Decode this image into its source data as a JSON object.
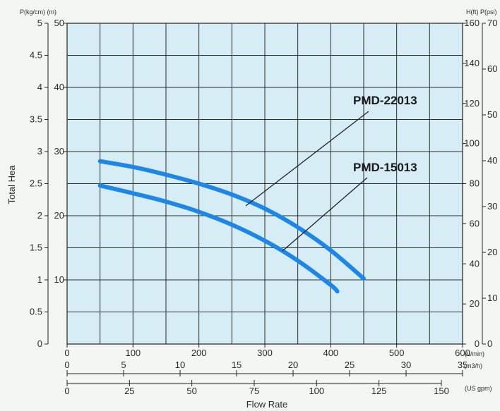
{
  "chart_data": {
    "type": "line",
    "title": "",
    "xlabel": "Flow Rate",
    "ylabel": "Total Hea",
    "x_unit": "(L/min)",
    "xlim": [
      0,
      600
    ],
    "ylim": [
      0,
      50
    ],
    "x_ticks": [
      "0",
      "100",
      "200",
      "300",
      "400",
      "500",
      "600"
    ],
    "y_ticks_left_outer": [
      "0",
      "0.5",
      "1",
      "1.5",
      "2",
      "2.5",
      "3",
      "3.5",
      "4",
      "4.5",
      "5"
    ],
    "y_ticks_left_inner": [
      "10",
      "20",
      "30",
      "40",
      "50"
    ],
    "y_unit_left": "P(kg/cm) (m)",
    "y_ticks_right_ft": [
      "0",
      "20",
      "40",
      "60",
      "80",
      "100",
      "120",
      "140",
      "160"
    ],
    "y_ticks_right_psi": [
      "0",
      "10",
      "20",
      "30",
      "40",
      "50",
      "60",
      "70"
    ],
    "y_unit_right": "H(ft) P(psi)",
    "x2_ticks": [
      "0",
      "5",
      "10",
      "15",
      "20",
      "25",
      "30",
      "35"
    ],
    "x2_unit": "(m3/h)",
    "x3_ticks": [
      "0",
      "25",
      "50",
      "75",
      "100",
      "125",
      "150"
    ],
    "x3_unit": "(US gpm)",
    "grid": true,
    "series": [
      {
        "name": "PMD-22013",
        "color": "#1e86e6",
        "x": [
          50,
          100,
          150,
          200,
          250,
          300,
          350,
          400,
          450
        ],
        "y": [
          28.5,
          27.6,
          26.4,
          25.0,
          23.3,
          21.1,
          18.2,
          14.6,
          10.2
        ]
      },
      {
        "name": "PMD-15013",
        "color": "#1e86e6",
        "x": [
          50,
          100,
          150,
          200,
          250,
          300,
          350,
          400,
          410
        ],
        "y": [
          24.7,
          23.5,
          22.2,
          20.6,
          18.6,
          16.1,
          13.0,
          9.2,
          8.2
        ]
      }
    ]
  }
}
